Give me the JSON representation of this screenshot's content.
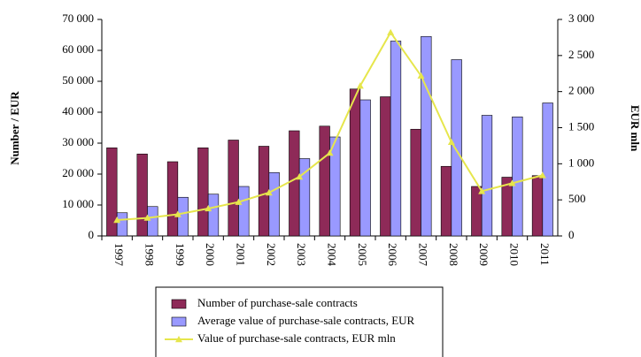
{
  "chart_data": {
    "type": "bar-line",
    "y_label": "Number / EUR",
    "y2_label": "EUR mln",
    "categories": [
      "1997",
      "1998",
      "1999",
      "2000",
      "2001",
      "2002",
      "2003",
      "2004",
      "2005",
      "2006",
      "2007",
      "2008",
      "2009",
      "2010",
      "2011"
    ],
    "series": [
      {
        "name": "Number of purchase-sale contracts",
        "type": "bar",
        "color": "#8e2a58",
        "values": [
          28500,
          26500,
          24000,
          28500,
          31000,
          29000,
          34000,
          35500,
          47500,
          45000,
          34500,
          22500,
          16000,
          19000,
          19500
        ]
      },
      {
        "name": "Average value of purchase-sale contracts, EUR",
        "type": "bar",
        "color": "#9999ff",
        "values": [
          7500,
          9500,
          12500,
          13500,
          16000,
          20500,
          25000,
          32000,
          44000,
          63000,
          64500,
          57000,
          39000,
          38500,
          43000
        ]
      },
      {
        "name": "Value of purchase-sale contracts, EUR mln",
        "type": "line",
        "axis": "y2",
        "color": "#e6e64c",
        "values": [
          220,
          250,
          300,
          380,
          470,
          600,
          820,
          1150,
          2080,
          2820,
          2220,
          1300,
          620,
          730,
          840
        ]
      }
    ],
    "ylim": [
      0,
      70000
    ],
    "yticks": [
      0,
      {
        "value": 10000,
        "label": "10 000"
      },
      {
        "value": 20000,
        "label": "20 000"
      },
      {
        "value": 30000,
        "label": "30 000"
      },
      {
        "value": 40000,
        "label": "40 000"
      },
      {
        "value": 50000,
        "label": "50 000"
      },
      {
        "value": 60000,
        "label": "60 000"
      },
      {
        "value": 70000,
        "label": "70 000"
      }
    ],
    "y2lim": [
      0,
      3000
    ],
    "y2ticks": [
      0,
      500,
      {
        "value": 1000,
        "label": "1 000"
      },
      {
        "value": 1500,
        "label": "1 500"
      },
      {
        "value": 2000,
        "label": "2 000"
      },
      {
        "value": 2500,
        "label": "2 500"
      },
      {
        "value": 3000,
        "label": "3 000"
      }
    ]
  }
}
